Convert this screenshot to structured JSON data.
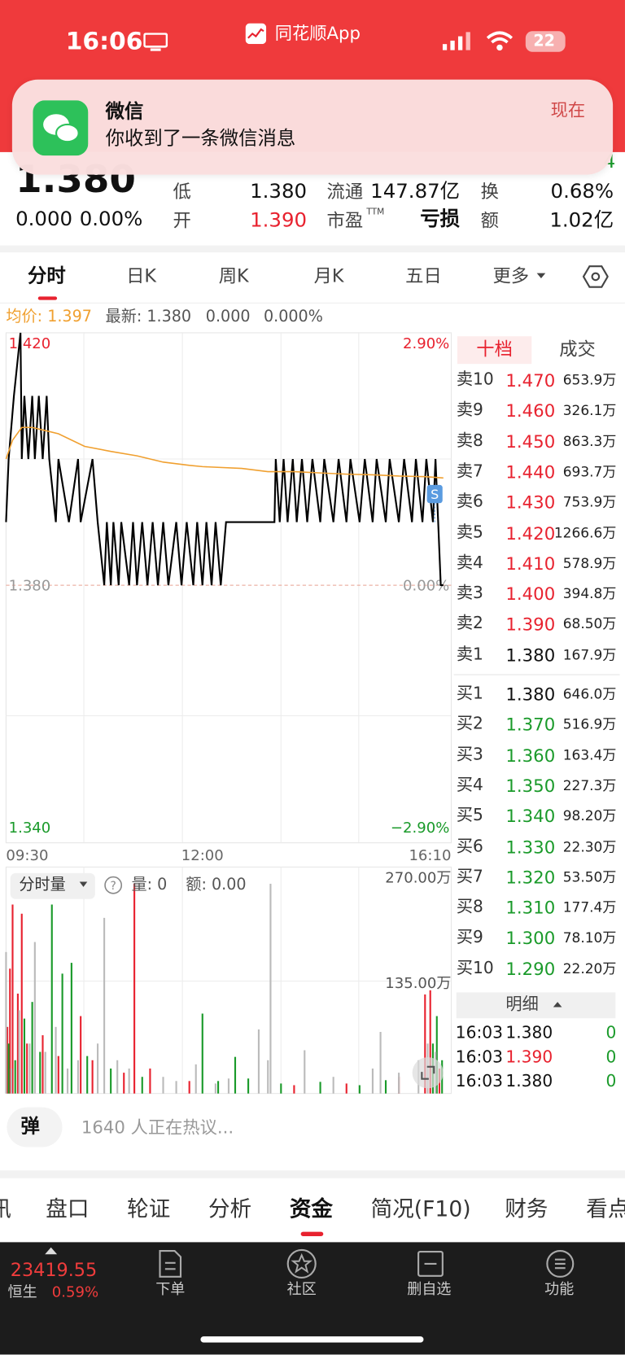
{
  "status_bar": {
    "time": "16:06",
    "app": "同花顺App",
    "battery": "22"
  },
  "notification": {
    "app": "微信",
    "message": "你收到了一条微信消息",
    "time": "现在"
  },
  "quote": {
    "price": "1.380",
    "change": "0.000",
    "change_pct": "0.00%",
    "edge_value": "4",
    "fields": [
      {
        "label": "低",
        "value": "1.380"
      },
      {
        "label": "开",
        "value": "1.390"
      },
      {
        "label": "流通",
        "value": "147.87亿"
      },
      {
        "label": "市盈",
        "sup": "TTM",
        "value": "亏损"
      },
      {
        "label": "换",
        "value": "0.68%"
      },
      {
        "label": "额",
        "value": "1.02亿"
      }
    ]
  },
  "tabs": [
    "分时",
    "日K",
    "周K",
    "月K",
    "五日",
    "更多"
  ],
  "info": {
    "avg": "均价: 1.397",
    "latest": "最新: 1.380",
    "change": "0.000",
    "change_pct": "0.000%"
  },
  "volume_header": {
    "selector": "分时量",
    "qty": "量: 0",
    "amount": "额: 0.00"
  },
  "chart_data": [
    {
      "type": "line",
      "marker": "S",
      "xlim": [
        0,
        340
      ],
      "xticks": [
        {
          "value": 0,
          "label": "09:30"
        },
        {
          "value": 150,
          "label": "12:00"
        },
        {
          "value": 340,
          "label": "16:10"
        }
      ],
      "ylim": [
        1.34,
        1.42
      ],
      "yticks": [
        {
          "value": 1.42,
          "label": "1.420"
        },
        {
          "value": 1.38,
          "label": "1.380"
        },
        {
          "value": 1.34,
          "label": "1.340"
        }
      ],
      "y2lim": [
        -2.9,
        2.9
      ],
      "y2ticks": [
        {
          "value": 2.9,
          "label": "2.90%"
        },
        {
          "value": 0,
          "label": "0.00%"
        },
        {
          "value": -2.9,
          "label": "−2.90%"
        }
      ],
      "series": [
        {
          "color": "#000000",
          "x": [
            0,
            2,
            6,
            11,
            12,
            14,
            17,
            20,
            22,
            25,
            28,
            31,
            33,
            38,
            40,
            48,
            55,
            57,
            66,
            70,
            75,
            77,
            80,
            82,
            86,
            88,
            94,
            97,
            100,
            104,
            108,
            112,
            116,
            120,
            124,
            130,
            134,
            138,
            143,
            146,
            150,
            153,
            157,
            160,
            164,
            168,
            185,
            205,
            206,
            209,
            212,
            215,
            219,
            222,
            226,
            230,
            234,
            240,
            243,
            250,
            254,
            260,
            263,
            270,
            274,
            280,
            283,
            290,
            293,
            300,
            304,
            310,
            313,
            318,
            321,
            326,
            328,
            330,
            332,
            334
          ],
          "values": [
            1.39,
            1.4,
            1.41,
            1.42,
            1.4,
            1.41,
            1.4,
            1.41,
            1.4,
            1.41,
            1.4,
            1.41,
            1.4,
            1.39,
            1.4,
            1.39,
            1.4,
            1.39,
            1.4,
            1.39,
            1.38,
            1.39,
            1.38,
            1.39,
            1.38,
            1.39,
            1.38,
            1.39,
            1.38,
            1.39,
            1.38,
            1.39,
            1.38,
            1.39,
            1.38,
            1.39,
            1.38,
            1.39,
            1.38,
            1.39,
            1.38,
            1.39,
            1.38,
            1.39,
            1.38,
            1.39,
            1.39,
            1.39,
            1.4,
            1.39,
            1.4,
            1.39,
            1.4,
            1.39,
            1.4,
            1.39,
            1.4,
            1.39,
            1.4,
            1.39,
            1.4,
            1.39,
            1.4,
            1.39,
            1.4,
            1.39,
            1.4,
            1.39,
            1.4,
            1.39,
            1.4,
            1.39,
            1.4,
            1.39,
            1.4,
            1.39,
            1.4,
            1.39,
            1.38,
            1.38
          ]
        },
        {
          "color": "#f0a030",
          "x": [
            0,
            5,
            12,
            20,
            30,
            40,
            60,
            80,
            100,
            120,
            140,
            150,
            180,
            200,
            220,
            240,
            260,
            280,
            300,
            320,
            334
          ],
          "values": [
            1.4,
            1.403,
            1.405,
            1.405,
            1.4045,
            1.404,
            1.402,
            1.4012,
            1.4005,
            1.3995,
            1.399,
            1.3988,
            1.3985,
            1.398,
            1.398,
            1.3978,
            1.3976,
            1.3975,
            1.3973,
            1.3972,
            1.397
          ]
        }
      ]
    },
    {
      "type": "bar",
      "xlim": [
        0,
        340
      ],
      "ylim": [
        0,
        270
      ],
      "yticks": [
        {
          "value": 135,
          "label": "135.00万"
        },
        {
          "value": 270,
          "label": "270.00万"
        }
      ],
      "series": [
        {
          "color": "#e8222f",
          "x": [
            1,
            3,
            5,
            9,
            12,
            16,
            28,
            40,
            57,
            66,
            90,
            98,
            110,
            140,
            220,
            260,
            300,
            320,
            324,
            331
          ],
          "values": [
            80,
            150,
            227,
            120,
            216,
            60,
            70,
            45,
            93,
            40,
            25,
            252,
            30,
            15,
            10,
            12,
            20,
            119,
            124,
            30
          ]
        },
        {
          "color": "#1a9a2a",
          "x": [
            2,
            7,
            14,
            20,
            26,
            35,
            43,
            50,
            62,
            80,
            104,
            150,
            162,
            175,
            185,
            210,
            240,
            270,
            290,
            326,
            329,
            333
          ],
          "values": [
            60,
            40,
            90,
            110,
            50,
            227,
            144,
            157,
            45,
            30,
            20,
            96,
            15,
            44,
            18,
            12,
            14,
            10,
            16,
            60,
            93,
            40
          ]
        },
        {
          "color": "#bbbbbb",
          "x": [
            0,
            4,
            10,
            18,
            22,
            30,
            38,
            47,
            55,
            70,
            75,
            85,
            94,
            120,
            130,
            145,
            160,
            170,
            193,
            200,
            202,
            228,
            250,
            280,
            286,
            300,
            315,
            322,
            328
          ],
          "values": [
            170,
            30,
            100,
            60,
            182,
            50,
            80,
            30,
            40,
            60,
            211,
            40,
            30,
            20,
            15,
            35,
            12,
            18,
            77,
            40,
            252,
            52,
            20,
            30,
            74,
            25,
            40,
            60,
            50
          ]
        }
      ]
    }
  ],
  "order_book": {
    "tabs": [
      "十档",
      "成交"
    ],
    "asks": [
      {
        "label": "卖10",
        "price": "1.470",
        "volume": "653.9万"
      },
      {
        "label": "卖9",
        "price": "1.460",
        "volume": "326.1万"
      },
      {
        "label": "卖8",
        "price": "1.450",
        "volume": "863.3万"
      },
      {
        "label": "卖7",
        "price": "1.440",
        "volume": "693.7万"
      },
      {
        "label": "卖6",
        "price": "1.430",
        "volume": "753.9万"
      },
      {
        "label": "卖5",
        "price": "1.420",
        "volume": "1266.6万"
      },
      {
        "label": "卖4",
        "price": "1.410",
        "volume": "578.9万"
      },
      {
        "label": "卖3",
        "price": "1.400",
        "volume": "394.8万"
      },
      {
        "label": "卖2",
        "price": "1.390",
        "volume": "68.50万"
      },
      {
        "label": "卖1",
        "price": "1.380",
        "volume": "167.9万"
      }
    ],
    "bids": [
      {
        "label": "买1",
        "price": "1.380",
        "volume": "646.0万"
      },
      {
        "label": "买2",
        "price": "1.370",
        "volume": "516.9万"
      },
      {
        "label": "买3",
        "price": "1.360",
        "volume": "163.4万"
      },
      {
        "label": "买4",
        "price": "1.350",
        "volume": "227.3万"
      },
      {
        "label": "买5",
        "price": "1.340",
        "volume": "98.20万"
      },
      {
        "label": "买6",
        "price": "1.330",
        "volume": "22.30万"
      },
      {
        "label": "买7",
        "price": "1.320",
        "volume": "53.50万"
      },
      {
        "label": "买8",
        "price": "1.310",
        "volume": "177.4万"
      },
      {
        "label": "买9",
        "price": "1.300",
        "volume": "78.10万"
      },
      {
        "label": "买10",
        "price": "1.290",
        "volume": "22.20万"
      }
    ],
    "detail": "明细",
    "trades": [
      {
        "time": "16:03",
        "price": "1.380",
        "qty": "0"
      },
      {
        "time": "16:03",
        "price": "1.390",
        "qty": "0"
      },
      {
        "time": "16:03",
        "price": "1.380",
        "qty": "0"
      }
    ]
  },
  "comment": {
    "button": "弹",
    "text": "1640 人正在热议..."
  },
  "bottom_tabs": [
    "讯",
    "盘口",
    "轮证",
    "分析",
    "资金",
    "简况(F10)",
    "财务",
    "看点"
  ],
  "nav": {
    "index_value": "23419.55",
    "index_name": "恒生",
    "index_pct": "0.59%",
    "items": [
      "下单",
      "社区",
      "删自选",
      "功能"
    ]
  }
}
